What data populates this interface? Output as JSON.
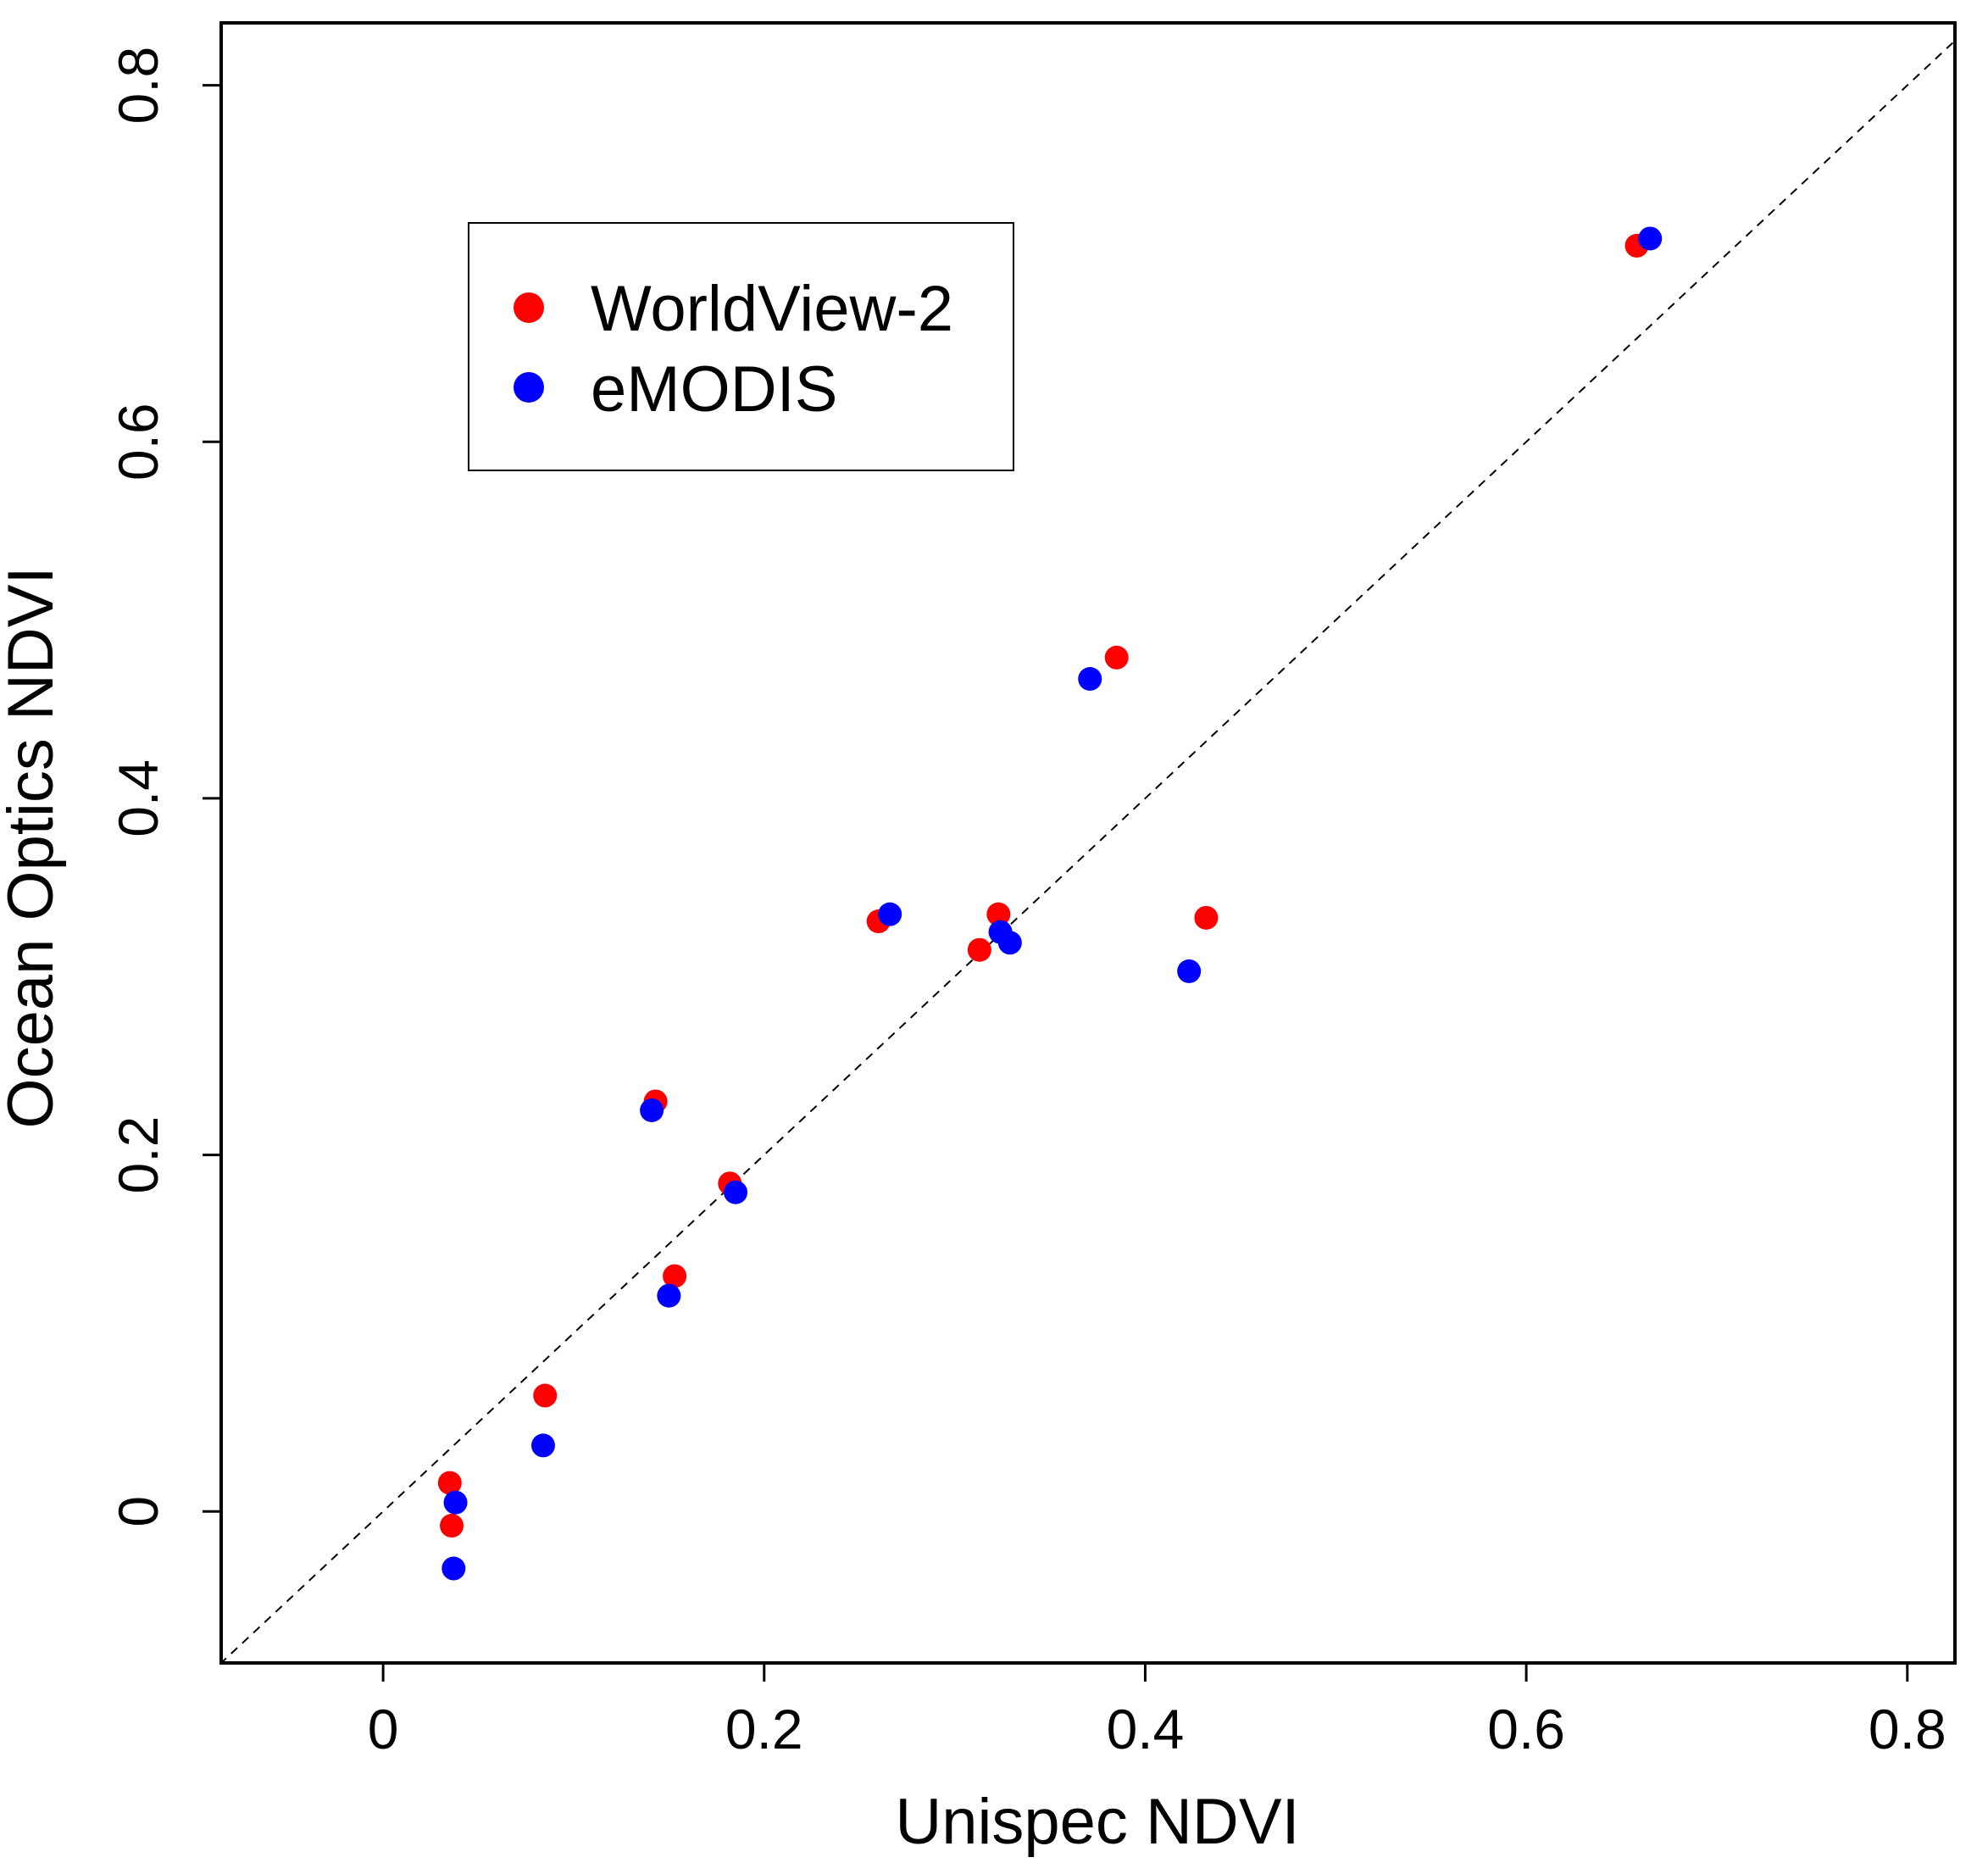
{
  "chart_data": {
    "type": "scatter",
    "title": "",
    "xlabel": "Unispec NDVI",
    "ylabel": "Ocean Optics NDVI",
    "xlim": [
      -0.085,
      0.825
    ],
    "ylim": [
      -0.085,
      0.835
    ],
    "xticks": [
      0,
      0.2,
      0.4,
      0.6,
      0.8
    ],
    "yticks": [
      0,
      0.2,
      0.4,
      0.6,
      0.8
    ],
    "xtick_labels": [
      "0",
      "0.2",
      "0.4",
      "0.6",
      "0.8"
    ],
    "ytick_labels": [
      "0",
      "0.2",
      "0.4",
      "0.6",
      "0.8"
    ],
    "grid": false,
    "reference_line": "1:1 dashed",
    "legend": {
      "position": "top-left"
    },
    "series": [
      {
        "name": "WorldView-2",
        "color": "#ff0000",
        "points": [
          [
            0.035,
            0.016
          ],
          [
            0.036,
            -0.008
          ],
          [
            0.085,
            0.065
          ],
          [
            0.143,
            0.23
          ],
          [
            0.153,
            0.132
          ],
          [
            0.182,
            0.184
          ],
          [
            0.26,
            0.331
          ],
          [
            0.313,
            0.315
          ],
          [
            0.323,
            0.335
          ],
          [
            0.385,
            0.479
          ],
          [
            0.432,
            0.333
          ],
          [
            0.658,
            0.71
          ]
        ]
      },
      {
        "name": "eMODIS",
        "color": "#0000ff",
        "points": [
          [
            0.038,
            0.005
          ],
          [
            0.037,
            -0.032
          ],
          [
            0.084,
            0.037
          ],
          [
            0.141,
            0.225
          ],
          [
            0.15,
            0.121
          ],
          [
            0.185,
            0.179
          ],
          [
            0.266,
            0.335
          ],
          [
            0.324,
            0.325
          ],
          [
            0.329,
            0.319
          ],
          [
            0.371,
            0.467
          ],
          [
            0.423,
            0.303
          ],
          [
            0.665,
            0.714
          ]
        ]
      }
    ]
  }
}
